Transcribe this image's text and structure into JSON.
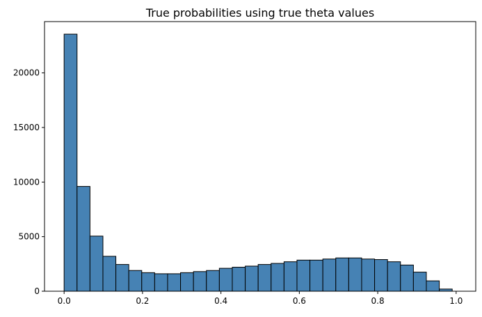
{
  "chart_data": {
    "type": "bar",
    "subtype": "histogram",
    "title": "True probabilities using true theta values",
    "xlabel": "",
    "ylabel": "",
    "xlim": [
      -0.05,
      1.05
    ],
    "ylim": [
      0,
      24700
    ],
    "x_ticks": [
      0.0,
      0.2,
      0.4,
      0.6,
      0.8,
      1.0
    ],
    "x_tick_labels": [
      "0.0",
      "0.2",
      "0.4",
      "0.6",
      "0.8",
      "1.0"
    ],
    "y_ticks": [
      0,
      5000,
      10000,
      15000,
      20000
    ],
    "y_tick_labels": [
      "0",
      "5000",
      "10000",
      "15000",
      "20000"
    ],
    "bin_range": [
      0.0,
      0.99
    ],
    "bin_count": 30,
    "values": [
      23550,
      9600,
      5050,
      3200,
      2450,
      1900,
      1700,
      1600,
      1600,
      1700,
      1800,
      1900,
      2100,
      2200,
      2300,
      2450,
      2550,
      2700,
      2850,
      2850,
      2950,
      3050,
      3050,
      2950,
      2900,
      2700,
      2400,
      1750,
      950,
      200
    ],
    "bar_color": "#4682b4",
    "edge_color": "#000000",
    "grid": false,
    "legend": "none"
  }
}
